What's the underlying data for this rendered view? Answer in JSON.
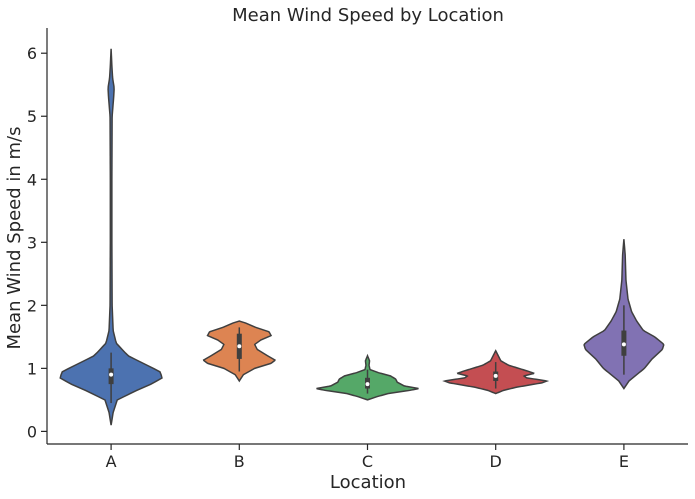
{
  "chart_data": {
    "type": "violin",
    "title": "Mean Wind Speed by Location",
    "xlabel": "Location",
    "ylabel": "Mean Wind Speed in m/s",
    "categories": [
      "A",
      "B",
      "C",
      "D",
      "E"
    ],
    "ylim": [
      -0.2,
      6.4
    ],
    "yticks": [
      0,
      1,
      2,
      3,
      4,
      5,
      6
    ],
    "grid": false,
    "series": [
      {
        "category": "A",
        "color": "#4c72b0",
        "range": [
          0.1,
          6.07
        ],
        "quartiles": [
          0.75,
          0.9,
          1.0
        ],
        "median": 0.9,
        "whiskers": [
          0.45,
          1.25
        ],
        "profile": [
          [
            0.1,
            0.0
          ],
          [
            0.3,
            0.04
          ],
          [
            0.5,
            0.12
          ],
          [
            0.65,
            0.5
          ],
          [
            0.75,
            0.78
          ],
          [
            0.85,
            1.0
          ],
          [
            0.95,
            0.95
          ],
          [
            1.05,
            0.7
          ],
          [
            1.2,
            0.33
          ],
          [
            1.4,
            0.1
          ],
          [
            1.6,
            0.04
          ],
          [
            2.0,
            0.02
          ],
          [
            3.0,
            0.015
          ],
          [
            4.0,
            0.015
          ],
          [
            5.0,
            0.02
          ],
          [
            5.3,
            0.05
          ],
          [
            5.45,
            0.06
          ],
          [
            5.6,
            0.03
          ],
          [
            5.8,
            0.015
          ],
          [
            6.07,
            0.0
          ]
        ]
      },
      {
        "category": "B",
        "color": "#dd8452",
        "range": [
          0.8,
          1.75
        ],
        "quartiles": [
          1.15,
          1.35,
          1.55
        ],
        "median": 1.35,
        "whiskers": [
          0.95,
          1.65
        ],
        "profile": [
          [
            0.8,
            0.0
          ],
          [
            0.9,
            0.08
          ],
          [
            1.0,
            0.3
          ],
          [
            1.08,
            0.62
          ],
          [
            1.13,
            0.7
          ],
          [
            1.2,
            0.55
          ],
          [
            1.3,
            0.35
          ],
          [
            1.38,
            0.3
          ],
          [
            1.45,
            0.42
          ],
          [
            1.52,
            0.62
          ],
          [
            1.58,
            0.58
          ],
          [
            1.65,
            0.32
          ],
          [
            1.72,
            0.12
          ],
          [
            1.75,
            0.0
          ]
        ]
      },
      {
        "category": "C",
        "color": "#55a868",
        "range": [
          0.5,
          1.2
        ],
        "quartiles": [
          0.68,
          0.75,
          0.85
        ],
        "median": 0.75,
        "whiskers": [
          0.6,
          0.98
        ],
        "profile": [
          [
            0.5,
            0.0
          ],
          [
            0.55,
            0.18
          ],
          [
            0.6,
            0.4
          ],
          [
            0.65,
            0.82
          ],
          [
            0.68,
            1.0
          ],
          [
            0.72,
            0.72
          ],
          [
            0.78,
            0.58
          ],
          [
            0.83,
            0.55
          ],
          [
            0.88,
            0.45
          ],
          [
            0.93,
            0.22
          ],
          [
            0.98,
            0.05
          ],
          [
            1.05,
            0.03
          ],
          [
            1.12,
            0.04
          ],
          [
            1.2,
            0.0
          ]
        ]
      },
      {
        "category": "D",
        "color": "#c44e52",
        "range": [
          0.6,
          1.28
        ],
        "quartiles": [
          0.8,
          0.88,
          0.95
        ],
        "median": 0.88,
        "whiskers": [
          0.68,
          1.1
        ],
        "profile": [
          [
            0.6,
            0.0
          ],
          [
            0.65,
            0.15
          ],
          [
            0.7,
            0.4
          ],
          [
            0.77,
            0.9
          ],
          [
            0.8,
            1.0
          ],
          [
            0.85,
            0.6
          ],
          [
            0.88,
            0.55
          ],
          [
            0.92,
            0.75
          ],
          [
            0.95,
            0.65
          ],
          [
            1.0,
            0.45
          ],
          [
            1.05,
            0.25
          ],
          [
            1.12,
            0.1
          ],
          [
            1.2,
            0.05
          ],
          [
            1.28,
            0.0
          ]
        ]
      },
      {
        "category": "E",
        "color": "#8172b3",
        "range": [
          0.68,
          3.05
        ],
        "quartiles": [
          1.2,
          1.38,
          1.6
        ],
        "median": 1.38,
        "whiskers": [
          0.9,
          2.0
        ],
        "profile": [
          [
            0.68,
            0.0
          ],
          [
            0.8,
            0.1
          ],
          [
            1.0,
            0.4
          ],
          [
            1.15,
            0.55
          ],
          [
            1.3,
            0.75
          ],
          [
            1.38,
            0.78
          ],
          [
            1.5,
            0.6
          ],
          [
            1.6,
            0.38
          ],
          [
            1.75,
            0.25
          ],
          [
            1.9,
            0.15
          ],
          [
            2.1,
            0.08
          ],
          [
            2.4,
            0.04
          ],
          [
            2.8,
            0.025
          ],
          [
            3.05,
            0.0
          ]
        ]
      }
    ]
  }
}
